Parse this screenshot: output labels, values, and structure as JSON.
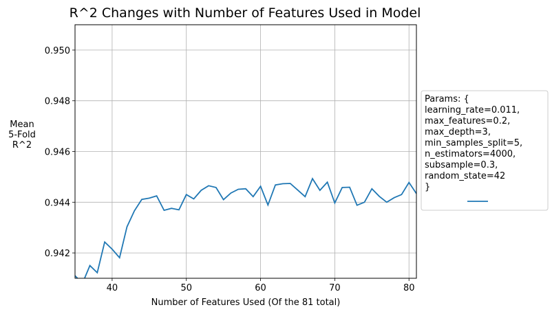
{
  "chart_data": {
    "type": "line",
    "title": "R^2 Changes with Number of Features Used in Model",
    "xlabel": "Number of Features Used (Of the 81 total)",
    "ylabel": [
      "Mean",
      "5-Fold",
      "R^2"
    ],
    "xlim": [
      35,
      81
    ],
    "ylim": [
      0.941,
      0.951
    ],
    "x_ticks": [
      40,
      50,
      60,
      70,
      80
    ],
    "y_ticks": [
      0.942,
      0.944,
      0.946,
      0.948,
      0.95
    ],
    "grid": true,
    "line_color": "#1f77b4",
    "legend": {
      "placement": "right",
      "lines": [
        "Params: {",
        "learning_rate=0.011,",
        "max_features=0.2,",
        "max_depth=3,",
        "min_samples_split=5,",
        "n_estimators=4000,",
        "subsample=0.3,",
        "random_state=42",
        "}"
      ]
    },
    "series": [
      {
        "x": [
          35,
          36,
          37,
          38,
          39,
          40,
          41,
          42,
          43,
          44,
          45,
          46,
          47,
          48,
          49,
          50,
          51,
          52,
          53,
          54,
          55,
          56,
          57,
          58,
          59,
          60,
          61,
          62,
          63,
          64,
          65,
          66,
          67,
          68,
          69,
          70,
          71,
          72,
          73,
          74,
          75,
          76,
          77,
          78,
          79,
          80,
          81
        ],
        "values": [
          0.9411,
          0.9408,
          0.9415,
          0.94122,
          0.94243,
          0.94215,
          0.94181,
          0.94303,
          0.94366,
          0.94411,
          0.94416,
          0.94425,
          0.94368,
          0.94376,
          0.9437,
          0.9443,
          0.94413,
          0.94447,
          0.94465,
          0.94458,
          0.9441,
          0.94436,
          0.94451,
          0.94453,
          0.94422,
          0.94463,
          0.94389,
          0.94468,
          0.94473,
          0.94474,
          0.94448,
          0.94422,
          0.94493,
          0.94447,
          0.94479,
          0.94397,
          0.94458,
          0.94459,
          0.94388,
          0.944,
          0.94453,
          0.94423,
          0.944,
          0.94418,
          0.9443,
          0.94478,
          0.94434
        ]
      }
    ]
  }
}
